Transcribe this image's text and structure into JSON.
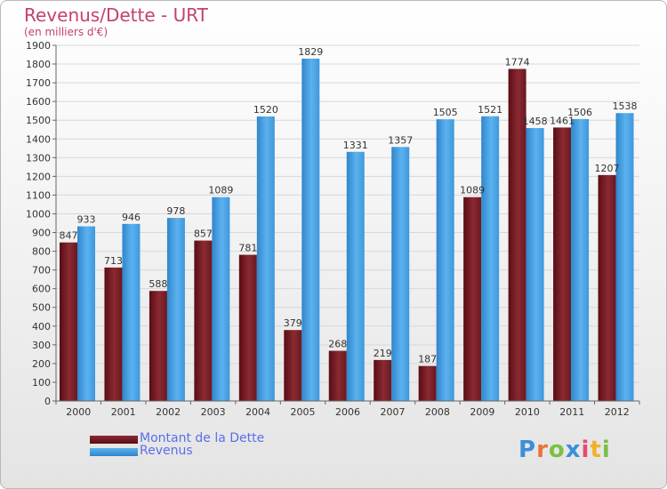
{
  "header": {
    "title": "Revenus/Dette - URT",
    "subtitle": "(en milliers d'€)"
  },
  "legend": [
    {
      "label": "Montant de la Dette",
      "color": "#7a1a22"
    },
    {
      "label": "Revenus",
      "color": "#4aa3e4"
    }
  ],
  "logo": {
    "text": "Proxiti",
    "letters": [
      "P",
      "r",
      "o",
      "x",
      "i",
      "t",
      "i"
    ],
    "colors": [
      "#3a8fd8",
      "#e8743a",
      "#7cc043",
      "#3a8fd8",
      "#e84a6e",
      "#f0b22a",
      "#7cc043"
    ]
  },
  "colors": {
    "title": "#c4426a",
    "legend_text": "#5b6fe8",
    "dette": "#7a1a22",
    "revenus": "#4aa3e4"
  },
  "chart_data": {
    "type": "bar",
    "categories": [
      "2000",
      "2001",
      "2002",
      "2003",
      "2004",
      "2005",
      "2006",
      "2007",
      "2008",
      "2009",
      "2010",
      "2011",
      "2012"
    ],
    "series": [
      {
        "name": "Montant de la Dette",
        "values": [
          847,
          713,
          588,
          857,
          781,
          379,
          268,
          219,
          187,
          1089,
          1774,
          1461,
          1207
        ],
        "labels": [
          "847",
          "713",
          "588",
          "857",
          "781",
          "379",
          "268",
          "219",
          "187",
          "1089",
          "1774",
          "1461",
          "1207"
        ]
      },
      {
        "name": "Revenus",
        "values": [
          933,
          946,
          978,
          1089,
          1520,
          1829,
          1331,
          1357,
          1505,
          1521,
          1458,
          1506,
          1538
        ],
        "labels": [
          "933",
          "946",
          "978",
          "1089",
          "1520",
          "1829",
          "1331",
          "1357",
          "1505",
          "1521",
          "1458",
          "1506",
          "1538"
        ]
      }
    ],
    "title": "Revenus/Dette - URT",
    "ylabel": "(en milliers d'€)",
    "ylim": [
      0,
      1900
    ],
    "yticks": [
      0,
      100,
      200,
      300,
      400,
      500,
      600,
      700,
      800,
      900,
      1000,
      1100,
      1200,
      1300,
      1400,
      1500,
      1600,
      1700,
      1800,
      1900
    ],
    "grid": true,
    "legend_position": "bottom-left"
  }
}
